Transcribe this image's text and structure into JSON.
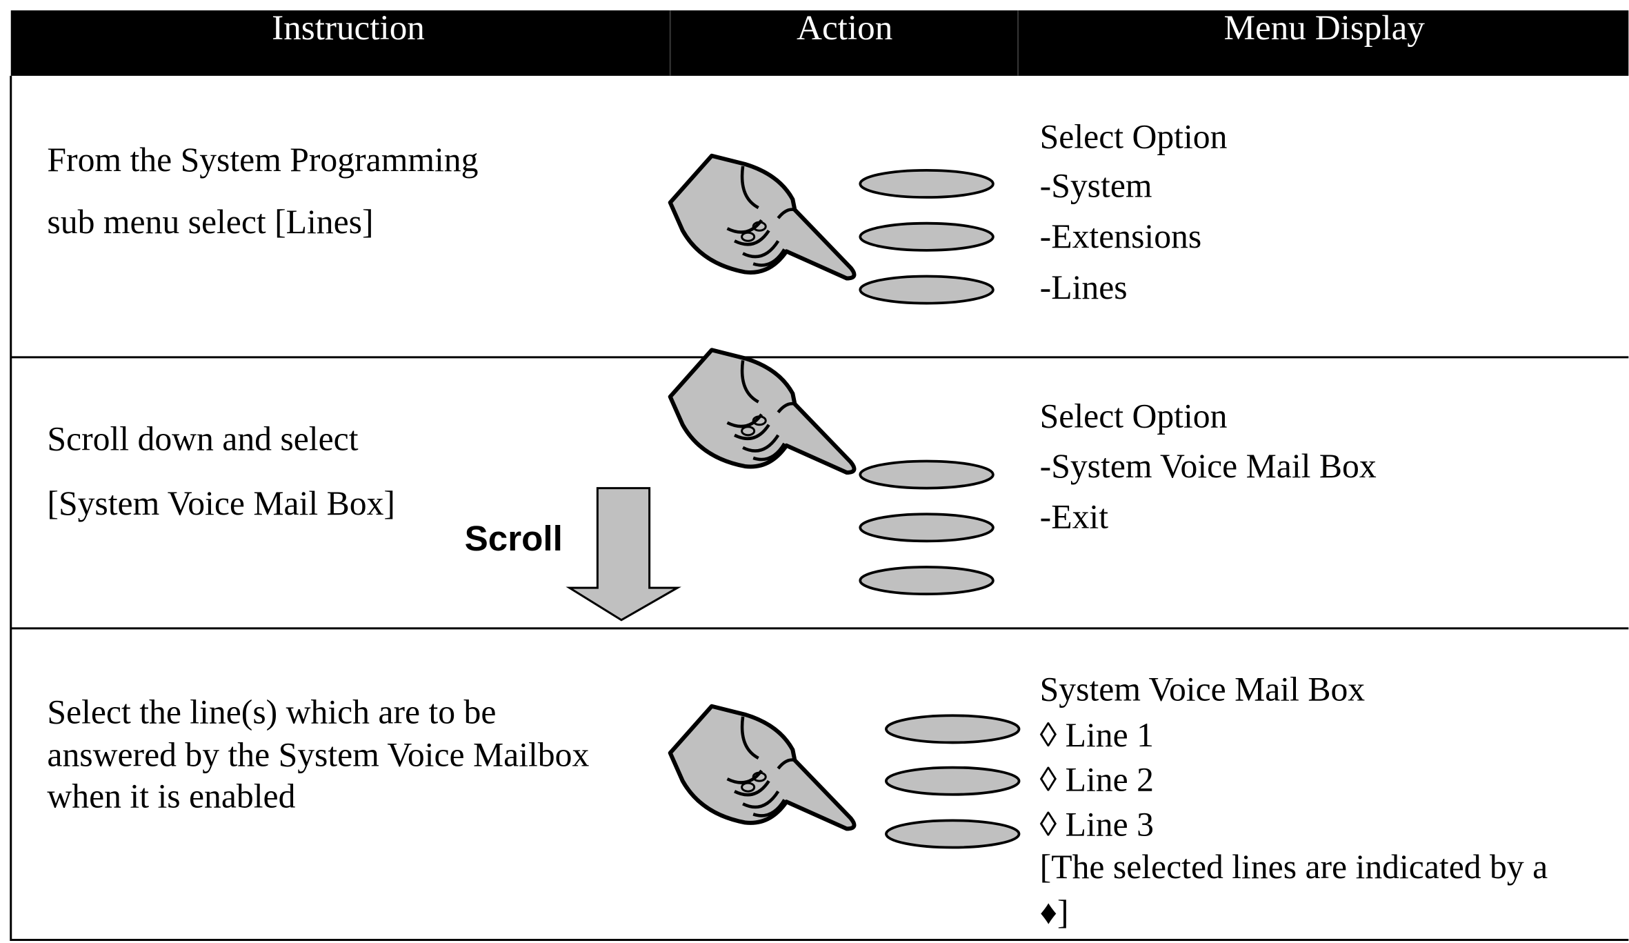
{
  "header": {
    "columns": [
      "Instruction",
      "Action",
      "Menu Display"
    ]
  },
  "rows": [
    {
      "instruction": [
        "From the System Programming",
        "sub menu select [Lines]"
      ],
      "menu": [
        "Select Option",
        "-System",
        "-Extensions",
        "-Lines"
      ]
    },
    {
      "instruction": [
        "Scroll down and select",
        "[System Voice Mail Box]"
      ],
      "action_label": "Scroll",
      "menu": [
        "Select Option",
        "-System Voice Mail Box",
        "-Exit"
      ]
    },
    {
      "instruction": [
        "Select the line(s) which are to be",
        "answered by the System Voice Mailbox",
        "when it is enabled"
      ],
      "menu": [
        "System Voice Mail Box",
        "◊ Line 1",
        "◊ Line 2",
        "◊ Line 3",
        "[The selected lines are indicated by a",
        "♦]"
      ]
    }
  ]
}
